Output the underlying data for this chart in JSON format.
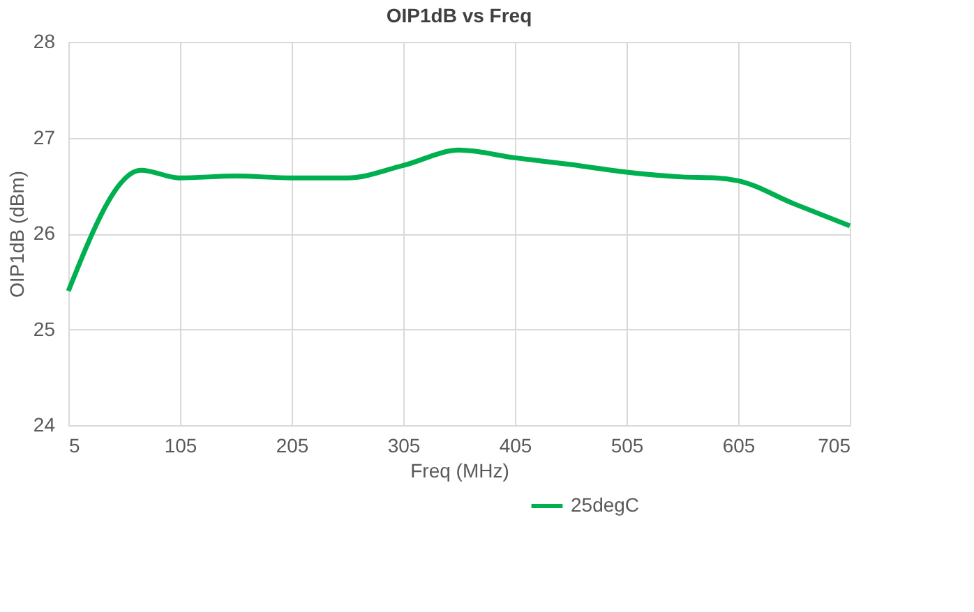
{
  "chart_data": {
    "type": "line",
    "title": "OIP1dB vs Freq",
    "xlabel": "Freq (MHz)",
    "ylabel": "OIP1dB (dBm)",
    "x": [
      5,
      70,
      105,
      155,
      205,
      255,
      305,
      355,
      405,
      455,
      505,
      555,
      585,
      605,
      655,
      705
    ],
    "series": [
      {
        "name": "25degC",
        "color": "#00b050",
        "values": [
          25.4,
          26.66,
          26.58,
          26.6,
          26.58,
          26.58,
          26.71,
          26.87,
          26.79,
          26.72,
          26.64,
          26.59,
          26.58,
          26.55,
          26.31,
          26.08
        ]
      }
    ],
    "xlim": [
      5,
      705
    ],
    "xticks": [
      5,
      105,
      205,
      305,
      405,
      505,
      605,
      705
    ],
    "ylim": [
      24,
      28
    ],
    "yticks": [
      24,
      25,
      26,
      27,
      28
    ],
    "grid": true,
    "legend": "bottom",
    "marker": "none",
    "line_style": "solid"
  }
}
